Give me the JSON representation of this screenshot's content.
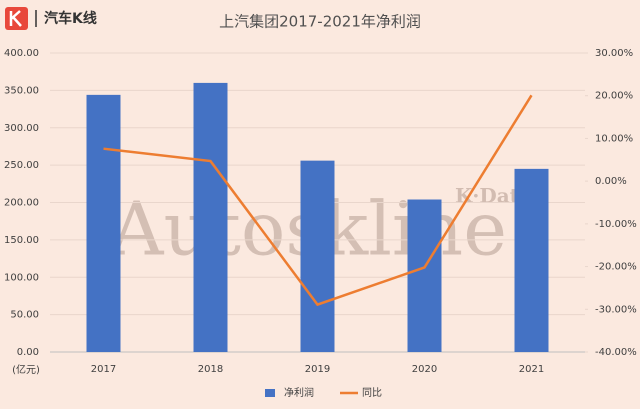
{
  "brand": "汽车K线",
  "watermark": "Autoskline",
  "watermark_sub": "K·Data",
  "chart_data": {
    "type": "bar",
    "title": "上汽集团2017-2021年净利润",
    "y_unit": "(亿元)",
    "categories": [
      "2017",
      "2018",
      "2019",
      "2020",
      "2021"
    ],
    "series": [
      {
        "name": "净利润",
        "type": "bar",
        "color": "#4472c4",
        "values": [
          344,
          360,
          256,
          204,
          245
        ]
      },
      {
        "name": "同比",
        "type": "line",
        "axis": "y2",
        "color": "#ed7d31",
        "values": [
          7.6,
          4.7,
          -28.9,
          -20.2,
          20.1
        ]
      }
    ],
    "ylim": [
      0,
      400
    ],
    "yticks": [
      {
        "value": 0,
        "label": "0.00"
      },
      {
        "value": 50,
        "label": "50.00"
      },
      {
        "value": 100,
        "label": "100.00"
      },
      {
        "value": 150,
        "label": "150.00"
      },
      {
        "value": 200,
        "label": "200.00"
      },
      {
        "value": 250,
        "label": "250.00"
      },
      {
        "value": 300,
        "label": "300.00"
      },
      {
        "value": 350,
        "label": "350.00"
      },
      {
        "value": 400,
        "label": "400.00"
      }
    ],
    "y2lim": [
      -40,
      30
    ],
    "y2ticks": [
      {
        "value": -40,
        "label": "-40.00%"
      },
      {
        "value": -30,
        "label": "-30.00%"
      },
      {
        "value": -20,
        "label": "-20.00%"
      },
      {
        "value": -10,
        "label": "-10.00%"
      },
      {
        "value": 0,
        "label": "0.00%"
      },
      {
        "value": 10,
        "label": "10.00%"
      },
      {
        "value": 20,
        "label": "20.00%"
      },
      {
        "value": 30,
        "label": "30.00%"
      }
    ],
    "grid": true,
    "legend": "bottom"
  }
}
